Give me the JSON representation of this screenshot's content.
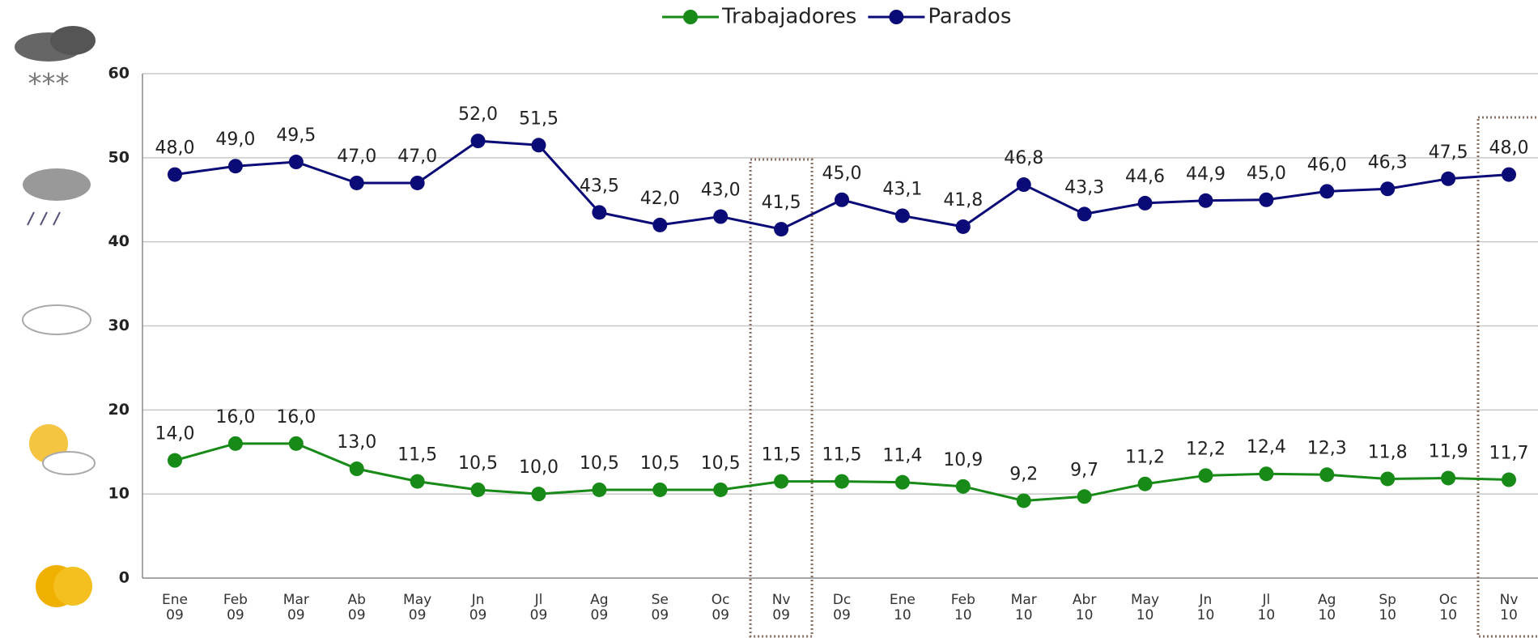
{
  "chart_data": {
    "type": "line",
    "categories": [
      "Ene 09",
      "Feb 09",
      "Mar 09",
      "Ab 09",
      "May 09",
      "Jn 09",
      "Jl 09",
      "Ag 09",
      "Se 09",
      "Oc 09",
      "Nv 09",
      "Dc 09",
      "Ene 10",
      "Feb 10",
      "Mar 10",
      "Abr 10",
      "May 10",
      "Jn 10",
      "Jl 10",
      "Ag 10",
      "Sp 10",
      "Oc 10",
      "Nv 10"
    ],
    "series": [
      {
        "name": "Trabajadores",
        "color": "#178a17",
        "values": [
          14.0,
          16.0,
          16.0,
          13.0,
          11.5,
          10.5,
          10.0,
          10.5,
          10.5,
          10.5,
          11.5,
          11.5,
          11.4,
          10.9,
          9.2,
          9.7,
          11.2,
          12.2,
          12.4,
          12.3,
          11.8,
          11.9,
          11.7
        ],
        "value_labels": [
          "14,0",
          "16,0",
          "16,0",
          "13,0",
          "11,5",
          "10,5",
          "10,0",
          "10,5",
          "10,5",
          "10,5",
          "11,5",
          "11,5",
          "11,4",
          "10,9",
          "9,2",
          "9,7",
          "11,2",
          "12,2",
          "12,4",
          "12,3",
          "11,8",
          "11,9",
          "11,7"
        ]
      },
      {
        "name": "Parados",
        "color": "#0b0b78",
        "values": [
          48.0,
          49.0,
          49.5,
          47.0,
          47.0,
          52.0,
          51.5,
          43.5,
          42.0,
          43.0,
          41.5,
          45.0,
          43.1,
          41.8,
          46.8,
          43.3,
          44.6,
          44.9,
          45.0,
          46.0,
          46.3,
          47.5,
          48.0
        ],
        "value_labels": [
          "48,0",
          "49,0",
          "49,5",
          "47,0",
          "47,0",
          "52,0",
          "51,5",
          "43,5",
          "42,0",
          "43,0",
          "41,5",
          "45,0",
          "43,1",
          "41,8",
          "46,8",
          "43,3",
          "44,6",
          "44,9",
          "45,0",
          "46,0",
          "46,3",
          "47,5",
          "48,0"
        ]
      }
    ],
    "ylim": [
      0,
      60
    ],
    "yticks": [
      0,
      10,
      20,
      30,
      40,
      50,
      60
    ],
    "grid": true,
    "legend": "top"
  }
}
